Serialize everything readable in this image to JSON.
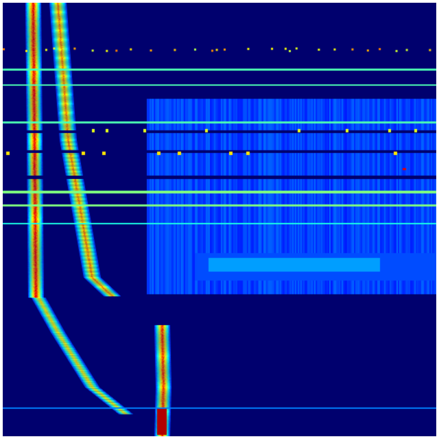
{
  "image": {
    "kind": "spectrogram-heatmap",
    "colormap": "jet",
    "colors": {
      "background": "#00006e",
      "low": "#0000a0",
      "mid_blue": "#0030f0",
      "cyan": "#20e0f0",
      "yellow": "#f0f020",
      "red": "#c00000",
      "border": "#ffffff"
    }
  }
}
